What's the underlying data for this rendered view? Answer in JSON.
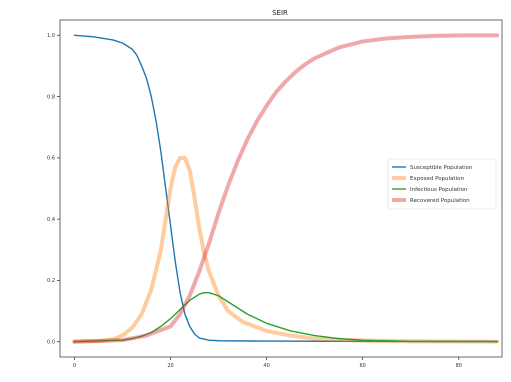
{
  "chart_data": {
    "type": "line",
    "title": "SEIR",
    "xlabel": "",
    "ylabel": "",
    "xlim": [
      -3,
      89
    ],
    "ylim": [
      -0.05,
      1.05
    ],
    "x_ticks": [
      0,
      20,
      40,
      60,
      80
    ],
    "y_ticks": [
      0.0,
      0.2,
      0.4,
      0.6,
      0.8,
      1.0
    ],
    "x_tick_labels": [
      "0",
      "20",
      "40",
      "60",
      "80"
    ],
    "y_tick_labels": [
      "0.0",
      "0.2",
      "0.4",
      "0.6",
      "0.8",
      "1.0"
    ],
    "grid": false,
    "legend_position": "center-right",
    "series": [
      {
        "name": "Susceptible Population",
        "color": "#1f77b4",
        "line_width": "thin",
        "x": [
          0,
          4,
          8,
          10,
          12,
          13,
          14,
          15,
          16,
          17,
          18,
          19,
          20,
          21,
          22,
          23,
          24,
          25,
          26,
          28,
          30,
          40,
          60,
          88
        ],
        "values": [
          1.0,
          0.995,
          0.985,
          0.975,
          0.955,
          0.935,
          0.9,
          0.86,
          0.8,
          0.72,
          0.62,
          0.5,
          0.38,
          0.26,
          0.16,
          0.09,
          0.05,
          0.025,
          0.012,
          0.005,
          0.003,
          0.002,
          0.001,
          0.001
        ]
      },
      {
        "name": "Exposed Population",
        "color": "#ff7f0e",
        "line_width": "thick",
        "x": [
          0,
          5,
          8,
          10,
          12,
          14,
          16,
          18,
          19,
          20,
          21,
          22,
          23,
          24,
          25,
          26,
          27,
          28,
          30,
          32,
          35,
          40,
          45,
          50,
          60,
          70,
          88
        ],
        "values": [
          0.0,
          0.002,
          0.008,
          0.02,
          0.045,
          0.09,
          0.17,
          0.3,
          0.4,
          0.5,
          0.57,
          0.6,
          0.6,
          0.56,
          0.47,
          0.37,
          0.29,
          0.23,
          0.15,
          0.1,
          0.065,
          0.035,
          0.02,
          0.01,
          0.004,
          0.001,
          0.0
        ]
      },
      {
        "name": "Infectious Population",
        "color": "#2ca02c",
        "line_width": "thin",
        "x": [
          0,
          10,
          12,
          14,
          16,
          18,
          20,
          22,
          24,
          26,
          27,
          28,
          29,
          30,
          32,
          34,
          36,
          40,
          45,
          50,
          55,
          60,
          70,
          88
        ],
        "values": [
          0.0,
          0.005,
          0.01,
          0.018,
          0.03,
          0.05,
          0.075,
          0.105,
          0.135,
          0.155,
          0.16,
          0.16,
          0.155,
          0.15,
          0.13,
          0.11,
          0.09,
          0.06,
          0.035,
          0.02,
          0.01,
          0.005,
          0.001,
          0.0
        ]
      },
      {
        "name": "Recovered Population",
        "color": "#d62728",
        "line_width": "thick",
        "x": [
          0,
          10,
          15,
          20,
          22,
          24,
          26,
          28,
          30,
          32,
          34,
          36,
          38,
          40,
          42,
          44,
          46,
          48,
          50,
          55,
          60,
          65,
          70,
          75,
          80,
          88
        ],
        "values": [
          0.0,
          0.005,
          0.02,
          0.05,
          0.09,
          0.15,
          0.23,
          0.32,
          0.42,
          0.51,
          0.59,
          0.66,
          0.72,
          0.77,
          0.815,
          0.85,
          0.88,
          0.905,
          0.925,
          0.96,
          0.98,
          0.99,
          0.995,
          0.998,
          1.0,
          1.0
        ]
      }
    ]
  }
}
